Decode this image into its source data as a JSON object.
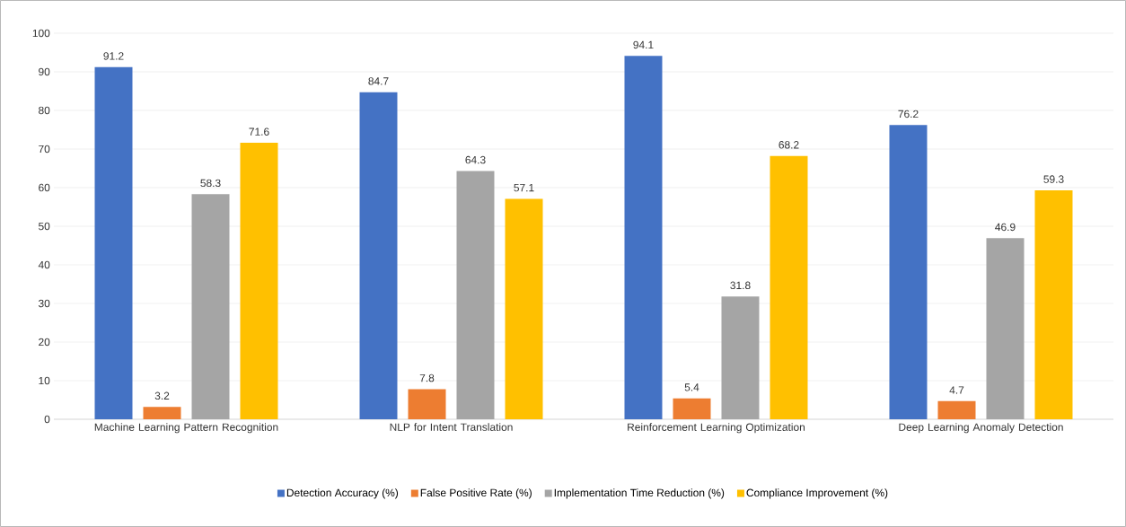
{
  "chart_data": {
    "type": "bar",
    "categories": [
      "Machine Learning Pattern Recognition",
      "NLP for Intent Translation",
      "Reinforcement Learning Optimization",
      "Deep Learning Anomaly Detection"
    ],
    "series": [
      {
        "name": "Detection Accuracy (%)",
        "color": "#4472c4",
        "values": [
          91.2,
          84.7,
          94.1,
          76.2
        ]
      },
      {
        "name": "False Positive Rate (%)",
        "color": "#ed7d31",
        "values": [
          3.2,
          7.8,
          5.4,
          4.7
        ]
      },
      {
        "name": "Implementation Time Reduction (%)",
        "color": "#a5a5a5",
        "values": [
          58.3,
          64.3,
          31.8,
          46.9
        ]
      },
      {
        "name": "Compliance Improvement (%)",
        "color": "#ffc000",
        "values": [
          71.6,
          57.1,
          68.2,
          59.3
        ]
      }
    ],
    "ylim": [
      0,
      100
    ],
    "yticks": [
      0,
      10,
      20,
      30,
      40,
      50,
      60,
      70,
      80,
      90,
      100
    ],
    "grid": "y",
    "legend": "bottom",
    "data_labels": true
  }
}
